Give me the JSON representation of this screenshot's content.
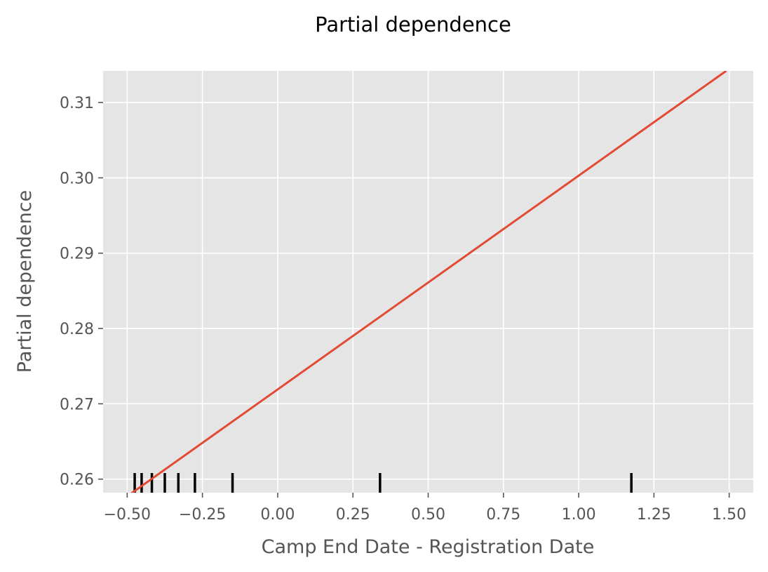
{
  "chart_data": {
    "type": "line",
    "title": "Partial dependence",
    "xlabel": "Camp End Date - Registration Date",
    "ylabel": "Partial dependence",
    "xlim": [
      -0.58,
      1.58
    ],
    "ylim": [
      0.2582,
      0.3142
    ],
    "xticks": [
      -0.5,
      -0.25,
      0.0,
      0.25,
      0.5,
      0.75,
      1.0,
      1.25,
      1.5
    ],
    "xtick_labels": [
      "−0.50",
      "−0.25",
      "0.00",
      "0.25",
      "0.50",
      "0.75",
      "1.00",
      "1.25",
      "1.50"
    ],
    "yticks": [
      0.26,
      0.27,
      0.28,
      0.29,
      0.3,
      0.31
    ],
    "ytick_labels": [
      "0.26",
      "0.27",
      "0.28",
      "0.29",
      "0.30",
      "0.31"
    ],
    "grid": true,
    "series": [
      {
        "color": "#E24A33",
        "x": [
          -0.49,
          1.49
        ],
        "y": [
          0.258,
          0.3142
        ]
      }
    ],
    "rug": {
      "color": "#000000",
      "x": [
        -0.475,
        -0.452,
        -0.418,
        -0.375,
        -0.33,
        -0.275,
        -0.15,
        0.34,
        1.175
      ]
    },
    "colors": {
      "background": "#E5E5E5",
      "grid": "#FFFFFF",
      "line": "#E24A33",
      "text": "#555555"
    }
  }
}
